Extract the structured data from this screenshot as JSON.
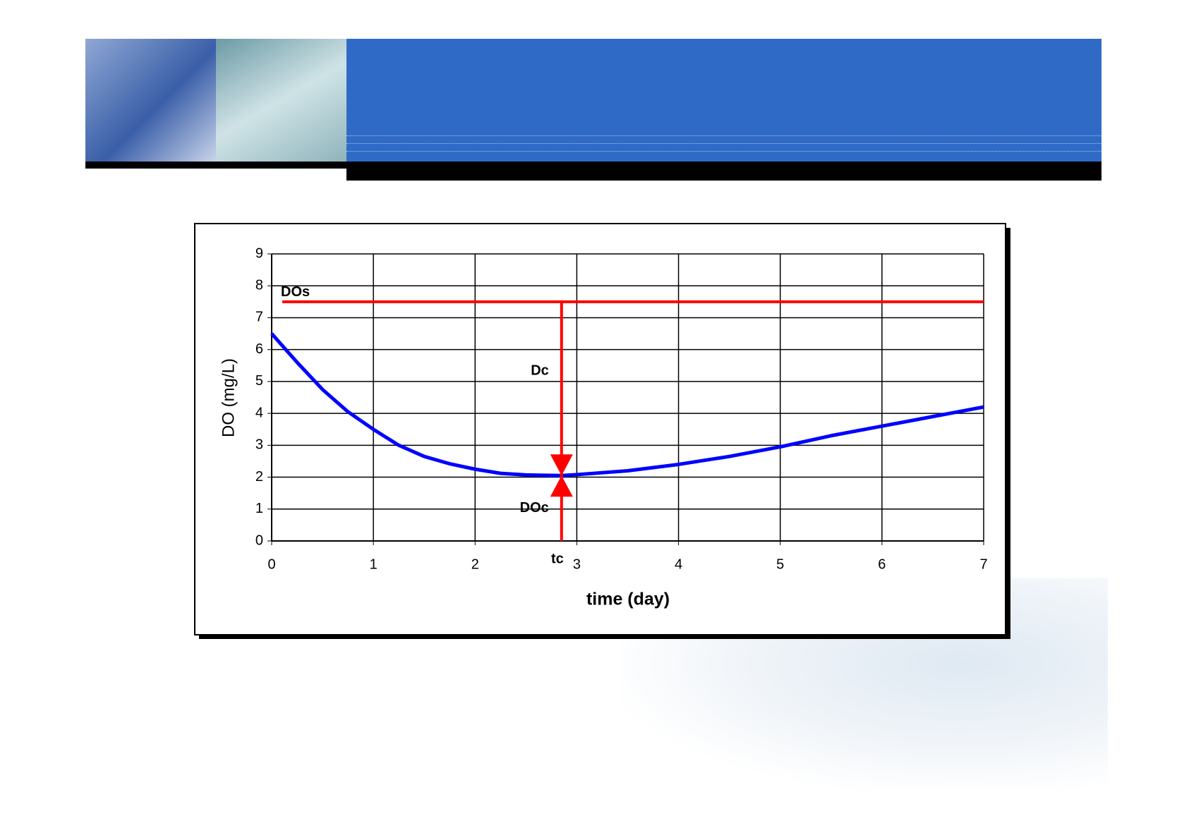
{
  "chart_data": {
    "type": "line",
    "x_label": "time (day)",
    "y_label": "DO (mg/L)",
    "x": [
      0,
      0.25,
      0.5,
      0.75,
      1,
      1.25,
      1.5,
      1.75,
      2,
      2.25,
      2.5,
      2.85,
      3,
      3.5,
      4,
      4.5,
      5,
      5.5,
      6,
      6.5,
      7
    ],
    "values": [
      6.5,
      5.6,
      4.75,
      4.05,
      3.5,
      3.0,
      2.65,
      2.42,
      2.25,
      2.12,
      2.07,
      2.05,
      2.08,
      2.2,
      2.4,
      2.65,
      2.95,
      3.3,
      3.6,
      3.9,
      4.2
    ],
    "color": "#0000ff",
    "xlim": [
      0,
      7
    ],
    "xticks": [
      0,
      1,
      2,
      3,
      4,
      5,
      6,
      7
    ],
    "ylim": [
      0,
      9
    ],
    "yticks": [
      0,
      1,
      2,
      3,
      4,
      5,
      6,
      7,
      8,
      9
    ],
    "grid": true,
    "saturation": {
      "label": "DOs",
      "value": 7.5,
      "color": "#ff0000"
    },
    "critical": {
      "x_label": "tc",
      "x": 2.85,
      "y": 2.05,
      "deficit_label": "Dc",
      "do_label": "DOc",
      "color": "#ff0000"
    }
  }
}
